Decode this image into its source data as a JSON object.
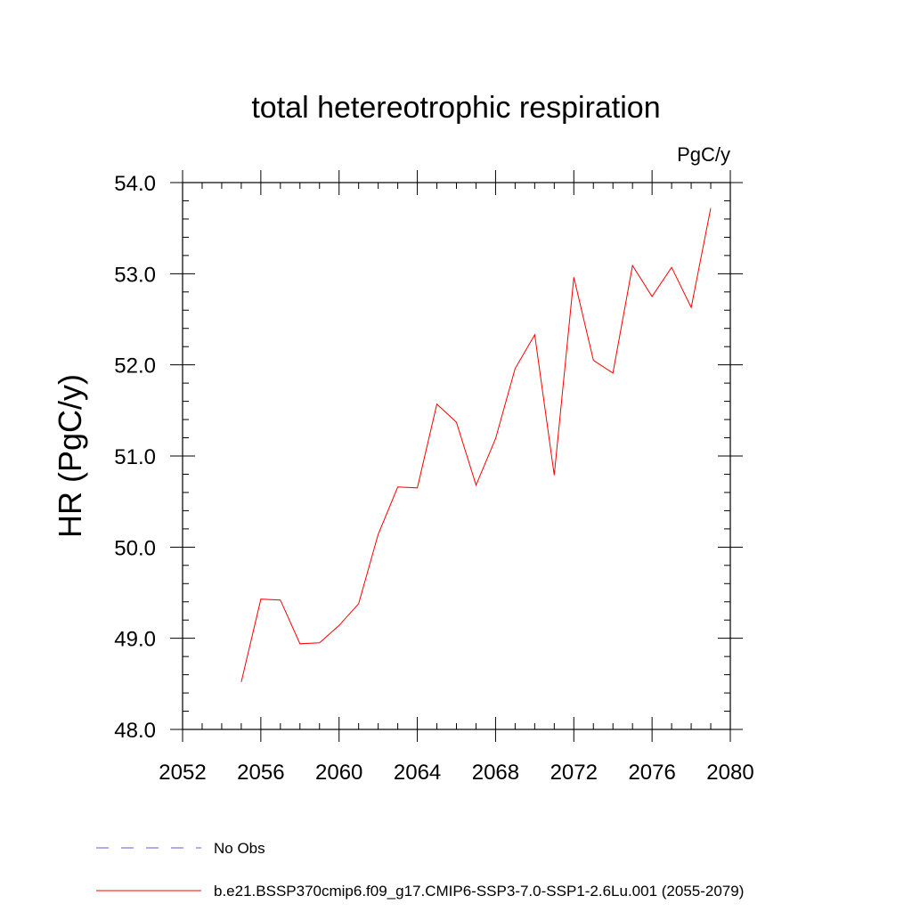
{
  "chart_data": {
    "type": "line",
    "title": "total hetereotrophic respiration",
    "units_label": "PgC/y",
    "xlabel": "",
    "ylabel": "HR  (PgC/y)",
    "xlim": [
      2052,
      2080
    ],
    "ylim": [
      48.0,
      54.0
    ],
    "x_ticks": [
      2052,
      2056,
      2060,
      2064,
      2068,
      2072,
      2076,
      2080
    ],
    "x_tick_labels": [
      "2052",
      "2056",
      "2060",
      "2064",
      "2068",
      "2072",
      "2076",
      "2080"
    ],
    "y_ticks": [
      48.0,
      49.0,
      50.0,
      51.0,
      52.0,
      53.0,
      54.0
    ],
    "y_tick_labels": [
      "48.0",
      "49.0",
      "50.0",
      "51.0",
      "52.0",
      "53.0",
      "54.0"
    ],
    "grid": false,
    "legend_position": "bottom",
    "series": [
      {
        "name": "b.e21.BSSP370cmip6.f09_g17.CMIP6-SSP3-7.0-SSP1-2.6Lu.001 (2055-2079)",
        "color": "#ff0000",
        "style": "solid",
        "x": [
          2055,
          2056,
          2057,
          2058,
          2059,
          2060,
          2061,
          2062,
          2063,
          2064,
          2065,
          2066,
          2067,
          2068,
          2069,
          2070,
          2071,
          2072,
          2073,
          2074,
          2075,
          2076,
          2077,
          2078,
          2079
        ],
        "y": [
          48.52,
          49.43,
          49.42,
          48.94,
          48.95,
          49.14,
          49.38,
          50.14,
          50.66,
          50.65,
          51.57,
          51.37,
          50.68,
          51.19,
          51.96,
          52.33,
          50.79,
          52.96,
          52.05,
          51.91,
          53.09,
          52.75,
          53.07,
          52.63,
          53.72
        ]
      }
    ],
    "legend": [
      {
        "label": "No Obs",
        "color": "#6a5acd",
        "style": "dashed"
      },
      {
        "label": "b.e21.BSSP370cmip6.f09_g17.CMIP6-SSP3-7.0-SSP1-2.6Lu.001 (2055-2079)",
        "color": "#ff0000",
        "style": "solid"
      }
    ]
  }
}
